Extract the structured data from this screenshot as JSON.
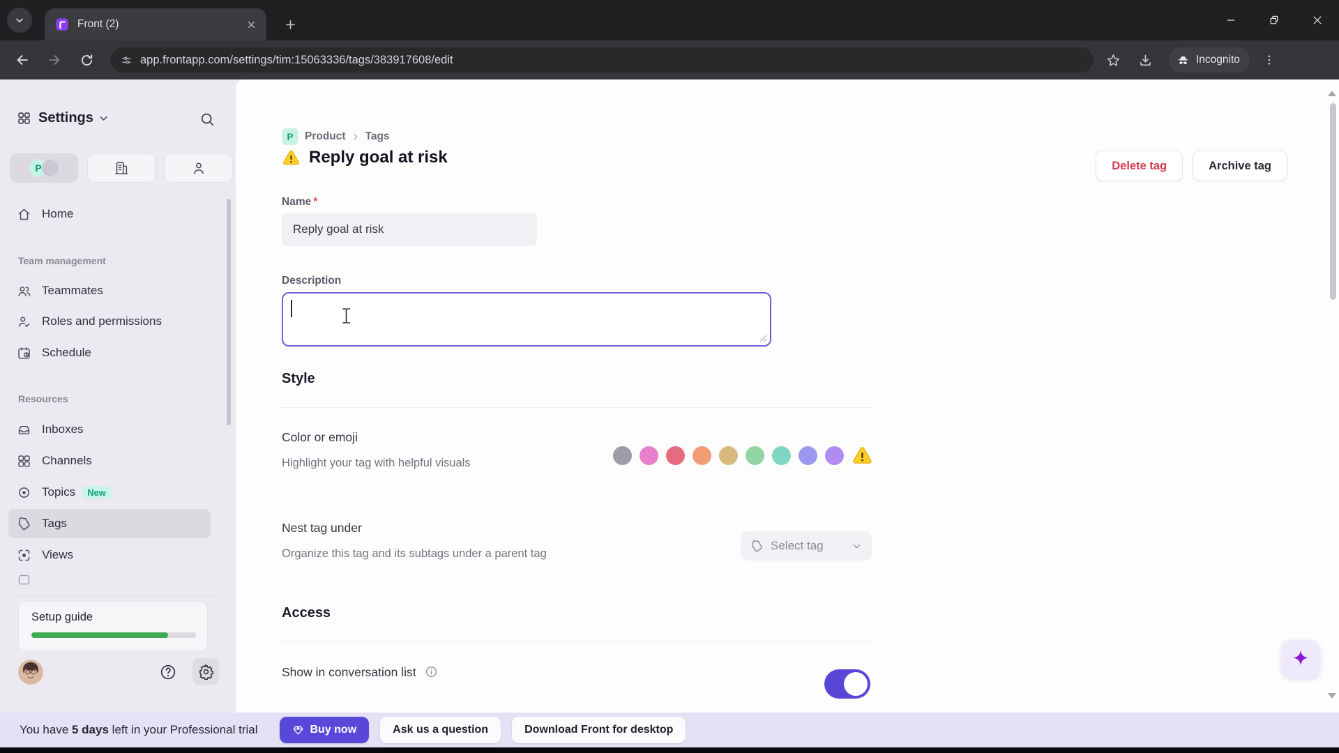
{
  "browser": {
    "tab": {
      "title": "Front (2)"
    },
    "address": {
      "url": "app.frontapp.com/settings/tim:15063336/tags/383917608/edit"
    },
    "incognito_label": "Incognito"
  },
  "sidebar": {
    "title": "Settings",
    "workspace_initial": "P",
    "nav": {
      "home": "Home",
      "team_section": "Team management",
      "teammates": "Teammates",
      "roles": "Roles and permissions",
      "schedule": "Schedule",
      "resources_section": "Resources",
      "inboxes": "Inboxes",
      "channels": "Channels",
      "topics": "Topics",
      "topics_badge": "New",
      "tags": "Tags",
      "views": "Views"
    },
    "setup_guide": {
      "label": "Setup guide",
      "progress_percent": 83
    }
  },
  "main": {
    "breadcrumb": {
      "workspace_initial": "P",
      "workspace": "Product",
      "page": "Tags"
    },
    "title": "Reply goal at risk",
    "actions": {
      "delete": "Delete tag",
      "archive": "Archive tag"
    },
    "name_field": {
      "label": "Name",
      "required_mark": "*",
      "value": "Reply goal at risk"
    },
    "description_field": {
      "label": "Description",
      "value": ""
    },
    "style_section": {
      "heading": "Style",
      "color_label": "Color or emoji",
      "color_subtitle": "Highlight your tag with helpful visuals",
      "swatches": [
        "#a09ba6",
        "#e77fcb",
        "#e56b7e",
        "#f09c74",
        "#d7b87d",
        "#92d5a5",
        "#7fd6c3",
        "#9d98ef",
        "#b18cf0"
      ],
      "selected_emoji": "warning",
      "nest_label": "Nest tag under",
      "nest_subtitle": "Organize this tag and its subtags under a parent tag",
      "select_tag_button": "Select tag"
    },
    "access_section": {
      "heading": "Access",
      "show_in_list_label": "Show in conversation list",
      "show_in_list_enabled": true
    }
  },
  "trial_bar": {
    "prefix": "You have ",
    "highlight": "5 days",
    "suffix": " left in your Professional trial",
    "buy_button": "Buy now",
    "ask_button": "Ask us a question",
    "download_button": "Download Front for desktop"
  },
  "colors": {
    "accent_purple": "#5847d6",
    "danger_red": "#d63a52",
    "badge_mint_bg": "#c8f2e4",
    "badge_teal_text": "#0a9c7c",
    "progress_green": "#3fa954",
    "focus_border": "#6c60d8"
  }
}
